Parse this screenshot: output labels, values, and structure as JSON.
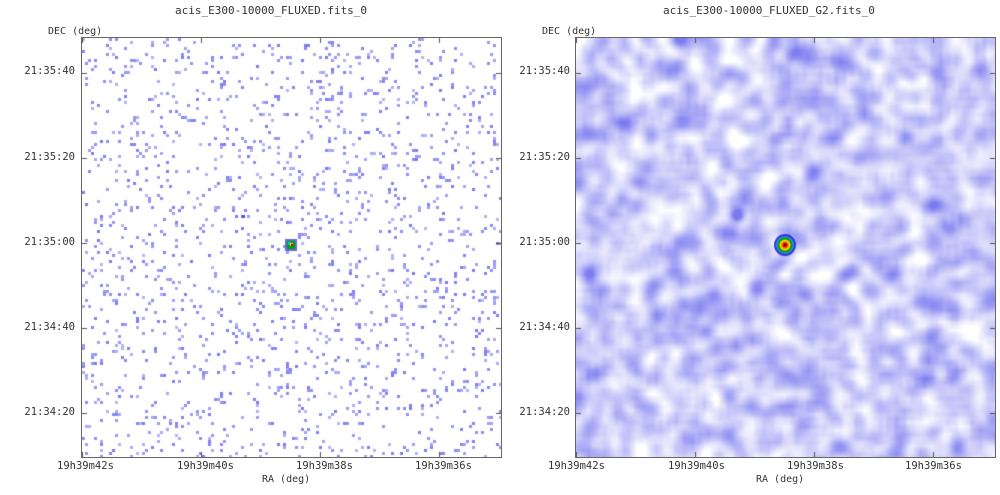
{
  "left_panel": {
    "title": "acis_E300-10000_FLUXED.fits_0",
    "ylabel": "DEC (deg)",
    "xlabel": "RA (deg)",
    "style": "sparse",
    "dec_ticks": [
      "21:35:40",
      "21:35:20",
      "21:35:00",
      "21:34:40",
      "21:34:20"
    ],
    "ra_ticks": [
      "19h39m42s",
      "19h39m40s",
      "19h39m38s",
      "19h39m36s"
    ]
  },
  "right_panel": {
    "title": "acis_E300-10000_FLUXED_G2.fits_0",
    "ylabel": "DEC (deg)",
    "xlabel": "RA (deg)",
    "style": "smoothed",
    "dec_ticks": [
      "21:35:40",
      "21:35:20",
      "21:35:00",
      "21:34:40",
      "21:34:20"
    ],
    "ra_ticks": [
      "19h39m42s",
      "19h39m40s",
      "19h39m38s",
      "19h39m36s"
    ]
  },
  "colors": {
    "background_noise": "#7b7bf0",
    "source_core": "#cc0000",
    "source_mid": "#ffd700",
    "source_outer": "#00a000"
  }
}
